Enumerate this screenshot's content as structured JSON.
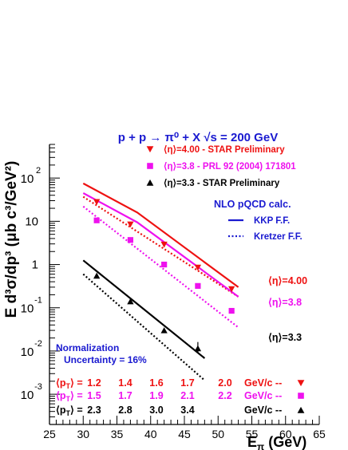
{
  "chart_data": {
    "type": "scatter",
    "title": "p + p → π⁰ + X   √s = 200 GeV",
    "xlabel": "E_π (GeV)",
    "ylabel": "E d³σ/dp³ (μb c³/GeV²)",
    "xlim": [
      25,
      65
    ],
    "ylim": [
      0.0002,
      600
    ],
    "yscale": "log",
    "x_ticks": [
      "25",
      "30",
      "35",
      "40",
      "45",
      "50",
      "55",
      "60",
      "65"
    ],
    "y_tick_labels": [
      {
        "v": 100,
        "base": "10",
        "exp": "2"
      },
      {
        "v": 10,
        "base": "10",
        "exp": ""
      },
      {
        "v": 1,
        "base": "1",
        "exp": ""
      },
      {
        "v": 0.1,
        "base": "10",
        "exp": "-1"
      },
      {
        "v": 0.01,
        "base": "10",
        "exp": "-2"
      },
      {
        "v": 0.001,
        "base": "10",
        "exp": "-3"
      }
    ],
    "series": [
      {
        "name": "⟨η⟩=4.00 - STAR Preliminary",
        "color": "#ee1111",
        "marker": "triangle-down",
        "x": [
          32,
          37,
          42,
          47,
          52
        ],
        "y": [
          28,
          8.5,
          2.9,
          0.85,
          0.27
        ]
      },
      {
        "name": "⟨η⟩=3.8 - PRL 92 (2004) 171801",
        "color": "#ee11ee",
        "marker": "square",
        "x": [
          32,
          37,
          42,
          47,
          52
        ],
        "y": [
          10.5,
          3.7,
          1.0,
          0.32,
          0.085
        ]
      },
      {
        "name": "⟨η⟩=3.3 - STAR Preliminary",
        "color": "#000000",
        "marker": "triangle-up",
        "x": [
          32,
          37,
          42,
          47
        ],
        "y": [
          0.55,
          0.14,
          0.03,
          0.0115
        ]
      }
    ],
    "theory_lines": [
      {
        "color": "#ee1111",
        "style": "solid",
        "x": [
          30,
          38,
          53
        ],
        "y": [
          75,
          16,
          0.3
        ]
      },
      {
        "color": "#ee1111",
        "style": "dotted",
        "x": [
          30,
          53
        ],
        "y": [
          37,
          0.18
        ]
      },
      {
        "color": "#ee11ee",
        "style": "solid",
        "x": [
          30,
          38,
          53
        ],
        "y": [
          45,
          9.5,
          0.18
        ]
      },
      {
        "color": "#ee11ee",
        "style": "dotted",
        "x": [
          30,
          53
        ],
        "y": [
          22,
          0.035
        ]
      },
      {
        "color": "#000000",
        "style": "solid",
        "x": [
          30,
          48
        ],
        "y": [
          1.25,
          0.0068
        ]
      },
      {
        "color": "#000000",
        "style": "dotted",
        "x": [
          30,
          48
        ],
        "y": [
          0.6,
          0.0021
        ]
      }
    ],
    "theory_title": "NLO pQCD calc.",
    "theory_legend": [
      {
        "name": "KKP F.F.",
        "style": "solid"
      },
      {
        "name": "Kretzer F.F.",
        "style": "dotted"
      }
    ],
    "eta_labels": [
      "⟨η⟩=4.00",
      "⟨η⟩=3.8",
      "⟨η⟩=3.3"
    ],
    "normalization": [
      "Normalization",
      "Uncertainty = 16%"
    ],
    "pt_rows": [
      {
        "label": "⟨p_T⟩ =",
        "values": [
          "1.2",
          "1.4",
          "1.6",
          "1.7",
          "2.0"
        ],
        "unit": "GeV/c  --",
        "color": "#ee1111",
        "marker": "triangle-down"
      },
      {
        "label": "⟨p_T⟩ =",
        "values": [
          "1.5",
          "1.7",
          "1.9",
          "2.1",
          "2.2"
        ],
        "unit": "GeV/c  --",
        "color": "#ee11ee",
        "marker": "square"
      },
      {
        "label": "⟨p_T⟩ =",
        "values": [
          "2.3",
          "2.8",
          "3.0",
          "3.4",
          ""
        ],
        "unit": "GeV/c  --",
        "color": "#000000",
        "marker": "triangle-up"
      }
    ]
  }
}
